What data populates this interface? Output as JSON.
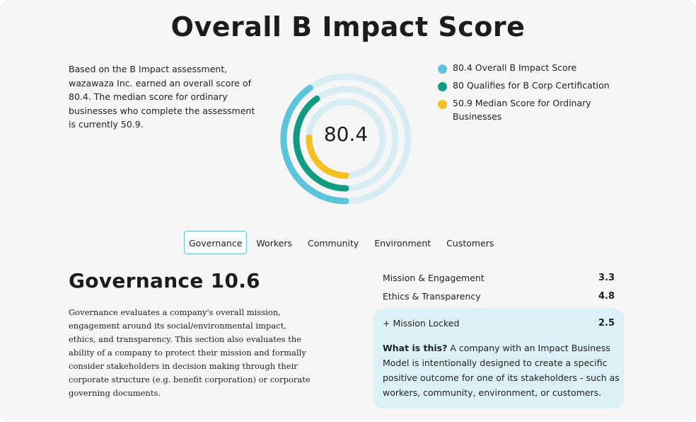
{
  "title": "Overall B Impact Score",
  "summary": "Based on the B Impact assessment, wazawaza Inc. earned an overall score of 80.4. The median score for ordinary businesses who complete the assessment is currently 50.9.",
  "donut": {
    "center_label": "80.4",
    "max": 200,
    "rings": [
      {
        "name": "Overall B Impact Score",
        "value": 80.4,
        "color": "#5bc3da",
        "track": "#d8edf3"
      },
      {
        "name": "Qualifies for B Corp Certification",
        "value": 80,
        "color": "#129a82",
        "track": "#d8edf3"
      },
      {
        "name": "Median Score for Ordinary Businesses",
        "value": 50.9,
        "color": "#f5c120",
        "track": "#d8edf3"
      }
    ]
  },
  "legend": [
    {
      "label": "80.4 Overall B Impact Score",
      "color": "#5bc3da"
    },
    {
      "label": "80 Qualifies for B Corp Certification",
      "color": "#129a82"
    },
    {
      "label": "50.9 Median Score for Ordinary Businesses",
      "color": "#f5c120"
    }
  ],
  "tabs": [
    {
      "label": "Governance",
      "active": true
    },
    {
      "label": "Workers",
      "active": false
    },
    {
      "label": "Community",
      "active": false
    },
    {
      "label": "Environment",
      "active": false
    },
    {
      "label": "Customers",
      "active": false
    }
  ],
  "section": {
    "title": "Governance 10.6",
    "description": "Governance evaluates a company's overall mission, engagement around its social/environmental impact, ethics, and transparency. This section also evaluates the ability of a company to protect their mission and formally consider stakeholders in decision making through their corporate structure (e.g. benefit corporation) or corporate governing documents."
  },
  "scores": [
    {
      "label": "Mission & Engagement",
      "value": "3.3"
    },
    {
      "label": "Ethics & Transparency",
      "value": "4.8"
    }
  ],
  "callout": {
    "label": "+ Mission Locked",
    "value": "2.5",
    "question": "What is this?",
    "answer": "A company with an Impact Business Model is intentionally designed to create a specific positive outcome for one of its stakeholders - such as workers, community, environment, or customers."
  }
}
